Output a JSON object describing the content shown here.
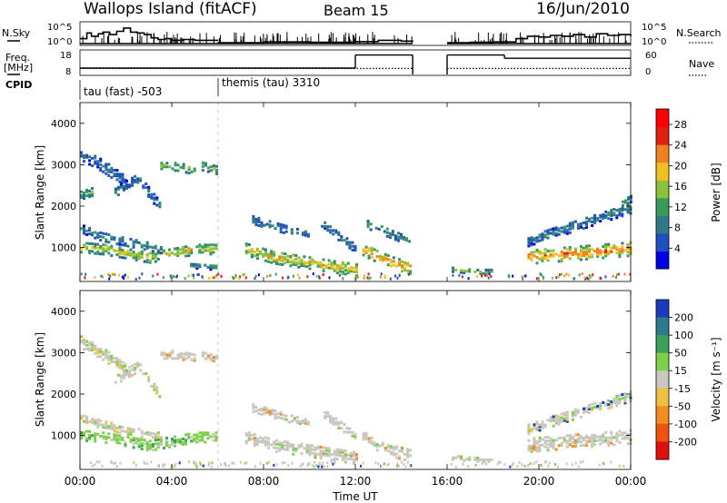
{
  "header": {
    "station": "Wallops Island (fitACF)",
    "beam": "Beam 15",
    "date": "16/Jun/2010"
  },
  "side_labels": {
    "nsky": "N.Sky",
    "freq": "Freq.",
    "freq_unit": "[MHz]",
    "cpid": "CPID",
    "nsearch": "N.Search",
    "nave": "Nave"
  },
  "cpid_labels": [
    {
      "text": "tau (fast) -503",
      "start_hour": 0
    },
    {
      "text": "themis (tau) 3310",
      "start_hour": 6.0
    }
  ],
  "chart_data": [
    {
      "type": "line",
      "name": "nsky-nsearch-strip",
      "y_ticks_left": [
        "10^5",
        "10^0"
      ],
      "y_ticks_right": [
        "10^5",
        "10^0"
      ],
      "gaps_hours": [
        [
          14.5,
          16.0
        ]
      ],
      "nsky_segments": [
        {
          "x": [
            0.0,
            0.3,
            0.5,
            0.8,
            1.0,
            1.3,
            1.6,
            1.9,
            2.2,
            2.5,
            2.8,
            3.1,
            3.4,
            3.7,
            4.0,
            4.5,
            5.0,
            5.5,
            6.0
          ],
          "level": [
            0.3,
            0.65,
            0.45,
            0.6,
            0.7,
            0.55,
            0.75,
            0.95,
            0.7,
            0.65,
            0.55,
            0.35,
            0.25,
            0.3,
            0.2,
            0.25,
            0.2,
            0.2,
            0.15
          ]
        },
        {
          "x": [
            6.0,
            8.0,
            10.0,
            12.0,
            13.0,
            14.0,
            14.5
          ],
          "level": [
            0.05,
            0.1,
            0.08,
            0.12,
            0.2,
            0.15,
            0.1
          ]
        },
        {
          "x": [
            16.0,
            17.0,
            18.0,
            19.0,
            19.5,
            20.0,
            20.5,
            21.0,
            21.5,
            22.0,
            22.5,
            23.0,
            23.5,
            24.0
          ],
          "level": [
            0.05,
            0.08,
            0.1,
            0.3,
            0.45,
            0.4,
            0.5,
            0.45,
            0.55,
            0.4,
            0.6,
            0.5,
            0.55,
            0.45
          ]
        }
      ]
    },
    {
      "type": "line",
      "name": "frequency-nave-strip",
      "y_ticks_left": [
        "18",
        "8"
      ],
      "y_ticks_right": [
        "60",
        "0"
      ],
      "frequency_mhz": [
        {
          "x": [
            0,
            12.0
          ],
          "y": 10.5
        },
        {
          "x": [
            12.0,
            14.5
          ],
          "y": 16.5
        },
        {
          "x": [
            16.0,
            18.5
          ],
          "y": 16.5
        },
        {
          "x": [
            18.5,
            24.0
          ],
          "y": 15.0
        }
      ],
      "nave": [
        {
          "x": [
            0,
            14.5
          ],
          "y": 14
        },
        {
          "x": [
            16.0,
            24.0
          ],
          "y": 14
        }
      ]
    },
    {
      "type": "heatmap",
      "name": "power-panel",
      "xlabel": "",
      "ylabel": "Slant Range [km]",
      "x_range_hours": [
        0,
        24
      ],
      "ylim": [
        180,
        4500
      ],
      "yticks": [
        1000,
        2000,
        3000,
        4000
      ],
      "colorbar": {
        "label": "Power [dB]",
        "ticks": [
          4,
          8,
          12,
          16,
          20,
          24,
          28
        ],
        "range": [
          0,
          31
        ],
        "colors": [
          "#0000e6",
          "#2050c0",
          "#2f7a8a",
          "#3a9a5a",
          "#8cc23a",
          "#f0c020",
          "#f08020",
          "#e02010",
          "#ff0000"
        ]
      },
      "regions": [
        {
          "t": [
            0.0,
            6.0
          ],
          "r_center": [
            1050,
            1000,
            900,
            800,
            900,
            1000,
            1000
          ],
          "width": 260,
          "level": 18
        },
        {
          "t": [
            0.0,
            3.5
          ],
          "r_center": [
            1500,
            1300,
            1200,
            1100,
            1000
          ],
          "width": 200,
          "level": 9
        },
        {
          "t": [
            0.0,
            2.0
          ],
          "r_center": [
            3300,
            3000,
            2600
          ],
          "width": 300,
          "level": 7
        },
        {
          "t": [
            0.0,
            0.6
          ],
          "r_center": [
            2300,
            2400
          ],
          "width": 200,
          "level": 12
        },
        {
          "t": [
            1.5,
            3.5
          ],
          "r_center": [
            2400,
            2700,
            2000
          ],
          "width": 260,
          "level": 8
        },
        {
          "t": [
            3.5,
            5.0
          ],
          "r_center": [
            3000,
            3000,
            2900
          ],
          "width": 220,
          "level": 14
        },
        {
          "t": [
            5.3,
            6.0
          ],
          "r_center": [
            3000,
            2900
          ],
          "width": 200,
          "level": 15
        },
        {
          "t": [
            4.8,
            6.0
          ],
          "r_center": [
            600,
            550
          ],
          "width": 120,
          "level": 10
        },
        {
          "t": [
            7.2,
            12.0
          ],
          "r_center": [
            1000,
            800,
            700,
            600,
            500
          ],
          "width": 300,
          "level": 20
        },
        {
          "t": [
            7.5,
            10.0
          ],
          "r_center": [
            1700,
            1500,
            1300
          ],
          "width": 200,
          "level": 9
        },
        {
          "t": [
            10.5,
            12.0
          ],
          "r_center": [
            1600,
            1300,
            1000
          ],
          "width": 200,
          "level": 8
        },
        {
          "t": [
            12.3,
            14.4
          ],
          "r_center": [
            1000,
            800,
            650,
            550
          ],
          "width": 300,
          "level": 23
        },
        {
          "t": [
            12.5,
            14.3
          ],
          "r_center": [
            1600,
            1400,
            1200
          ],
          "width": 220,
          "level": 10
        },
        {
          "t": [
            16.2,
            18.0
          ],
          "r_center": [
            500,
            450,
            450
          ],
          "width": 100,
          "level": 14
        },
        {
          "t": [
            19.5,
            24.0
          ],
          "r_center": [
            800,
            850,
            900,
            950,
            1000
          ],
          "width": 320,
          "level": 24
        },
        {
          "t": [
            19.5,
            24.0
          ],
          "r_center": [
            1200,
            1400,
            1600,
            1800,
            2000
          ],
          "width": 260,
          "level": 8
        },
        {
          "t": [
            23.6,
            24.0
          ],
          "r_center": [
            2100,
            2200
          ],
          "width": 200,
          "level": 10
        }
      ]
    },
    {
      "type": "heatmap",
      "name": "velocity-panel",
      "xlabel": "Time UT",
      "ylabel": "Slant Range [km]",
      "x_range_hours": [
        0,
        24
      ],
      "xticks": [
        "00:00",
        "04:00",
        "08:00",
        "12:00",
        "16:00",
        "20:00",
        "00:00"
      ],
      "ylim": [
        180,
        4500
      ],
      "yticks": [
        1000,
        2000,
        3000,
        4000
      ],
      "colorbar": {
        "label": "Velocity [m s⁻¹]",
        "ticks": [
          200,
          100,
          50,
          15,
          -15,
          -50,
          -100,
          -200
        ],
        "colors": [
          "#1a3ac0",
          "#2e7a8e",
          "#3aa05a",
          "#7ed04a",
          "#c8c8c0",
          "#f0c040",
          "#f08c20",
          "#f05010",
          "#e01010"
        ]
      },
      "regions": [
        {
          "t": [
            0.0,
            6.0
          ],
          "r_center": [
            1050,
            1000,
            900,
            800,
            900,
            1000,
            1000
          ],
          "width": 260,
          "class": "green"
        },
        {
          "t": [
            0.0,
            3.5
          ],
          "r_center": [
            1500,
            1300,
            1200,
            1100,
            1000
          ],
          "width": 200,
          "class": "lightgrey"
        },
        {
          "t": [
            0.0,
            2.0
          ],
          "r_center": [
            3300,
            3000,
            2600
          ],
          "width": 300,
          "class": "lightgrey"
        },
        {
          "t": [
            1.5,
            3.5
          ],
          "r_center": [
            2400,
            2700,
            2000
          ],
          "width": 260,
          "class": "lightgrey"
        },
        {
          "t": [
            3.5,
            5.0
          ],
          "r_center": [
            3000,
            3000,
            2900
          ],
          "width": 220,
          "class": "grey"
        },
        {
          "t": [
            5.3,
            6.0
          ],
          "r_center": [
            3000,
            2900
          ],
          "width": 200,
          "class": "grey"
        },
        {
          "t": [
            7.2,
            12.0
          ],
          "r_center": [
            1000,
            800,
            700,
            600,
            500
          ],
          "width": 300,
          "class": "grey"
        },
        {
          "t": [
            7.5,
            10.0
          ],
          "r_center": [
            1700,
            1500,
            1300
          ],
          "width": 200,
          "class": "grey"
        },
        {
          "t": [
            10.5,
            12.0
          ],
          "r_center": [
            1600,
            1300,
            1000
          ],
          "width": 200,
          "class": "grey"
        },
        {
          "t": [
            12.3,
            14.4
          ],
          "r_center": [
            1000,
            800,
            650,
            550
          ],
          "width": 300,
          "class": "grey"
        },
        {
          "t": [
            16.2,
            18.0
          ],
          "r_center": [
            500,
            450,
            450
          ],
          "width": 100,
          "class": "grey"
        },
        {
          "t": [
            19.5,
            24.0
          ],
          "r_center": [
            800,
            850,
            900,
            950,
            1000
          ],
          "width": 320,
          "class": "grey"
        },
        {
          "t": [
            19.5,
            24.0
          ],
          "r_center": [
            1200,
            1400,
            1600,
            1800,
            2000
          ],
          "width": 260,
          "class": "sparse"
        }
      ]
    }
  ]
}
